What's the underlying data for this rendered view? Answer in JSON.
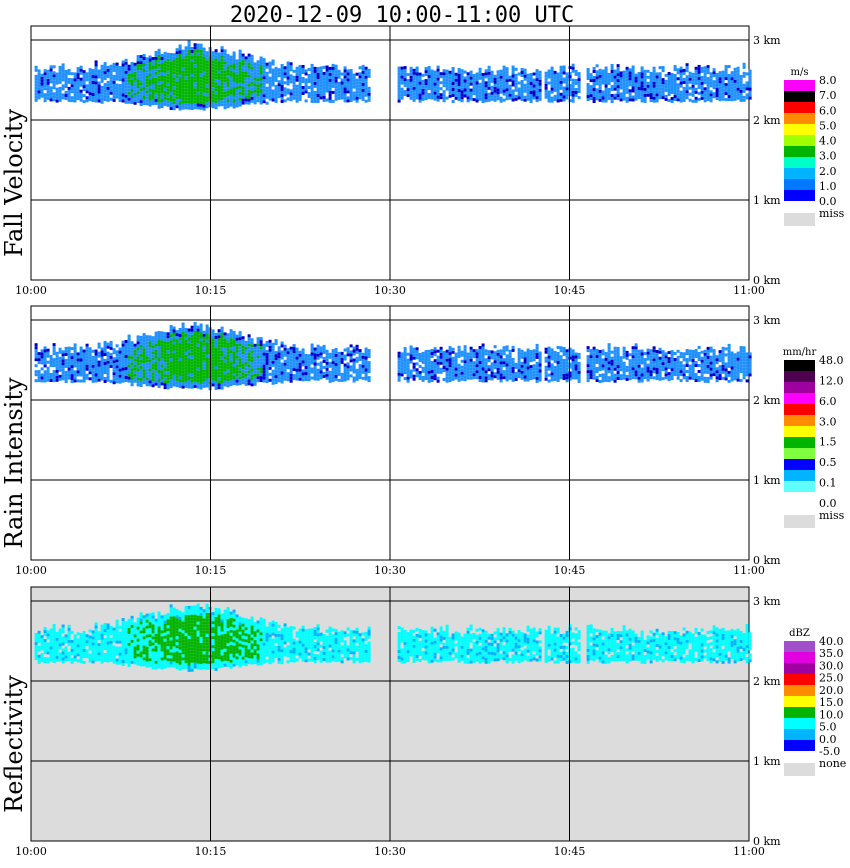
{
  "title": "2020-12-09   10:00-11:00 UTC",
  "x_tick_labels": [
    "10:00",
    "10:15",
    "10:30",
    "10:45",
    "11:00"
  ],
  "y_tick_labels": [
    "0 km",
    "1 km",
    "2 km",
    "3 km"
  ],
  "colors": {
    "background": "#ffffff",
    "missing": "#dcdcdc",
    "grid": "#000000"
  },
  "chart_data": [
    {
      "type": "heatmap",
      "ylabel": "Fall Velocity",
      "x_range": [
        "10:00",
        "11:00"
      ],
      "y_range_km": [
        0,
        3.2
      ],
      "colorbar": {
        "unit": "m/s",
        "labels": [
          "8.0",
          "7.0",
          "6.0",
          "5.0",
          "4.0",
          "3.0",
          "2.0",
          "1.0",
          "0.0"
        ],
        "colors": [
          "#ff00ff",
          "#000000",
          "#ff0000",
          "#ff8c00",
          "#ffff00",
          "#a0ff00",
          "#00b400",
          "#00ffc8",
          "#00b4ff",
          "#0078ff",
          "#0000ff"
        ],
        "missing_label": "miss"
      },
      "background": "#ffffff",
      "rain_layer": {
        "base_km": 2.25,
        "top_km": 2.6,
        "dominant_color": "#1e90ff",
        "secondary_color": "#0000cd",
        "max_cells_color": "#00b400"
      }
    },
    {
      "type": "heatmap",
      "ylabel": "Rain Intensity",
      "x_range": [
        "10:00",
        "11:00"
      ],
      "y_range_km": [
        0,
        3.2
      ],
      "colorbar": {
        "unit": "mm/hr",
        "labels": [
          "48.0",
          "12.0",
          "6.0",
          "3.0",
          "1.5",
          "0.5",
          "0.1",
          "0.0"
        ],
        "colors": [
          "#000000",
          "#500050",
          "#a000a0",
          "#ff00ff",
          "#ff0000",
          "#ff8c00",
          "#ffff00",
          "#00b400",
          "#80ff40",
          "#0000ff",
          "#00b4ff",
          "#60ffff",
          "#ffffff"
        ],
        "missing_label": "miss"
      },
      "background": "#ffffff",
      "rain_layer": {
        "base_km": 2.25,
        "top_km": 2.6,
        "dominant_color": "#1e90ff",
        "secondary_color": "#0000cd",
        "max_cells_color": "#00b400"
      }
    },
    {
      "type": "heatmap",
      "ylabel": "Reflectivity",
      "x_range": [
        "10:00",
        "11:00"
      ],
      "y_range_km": [
        0,
        3.2
      ],
      "colorbar": {
        "unit": "dBZ",
        "labels": [
          "40.0",
          "35.0",
          "30.0",
          "25.0",
          "20.0",
          "15.0",
          "10.0",
          "5.0",
          "0.0",
          "-5.0"
        ],
        "colors": [
          "#a050c8",
          "#e000e0",
          "#a000a0",
          "#ff0000",
          "#ff8c00",
          "#ffff00",
          "#00b400",
          "#00ffff",
          "#00b4ff",
          "#0000ff"
        ],
        "missing_label": "none"
      },
      "background": "#dcdcdc",
      "rain_layer": {
        "base_km": 2.25,
        "top_km": 2.6,
        "dominant_color": "#00ffff",
        "secondary_color": "#00b4ff",
        "max_cells_color": "#00b400"
      }
    }
  ]
}
